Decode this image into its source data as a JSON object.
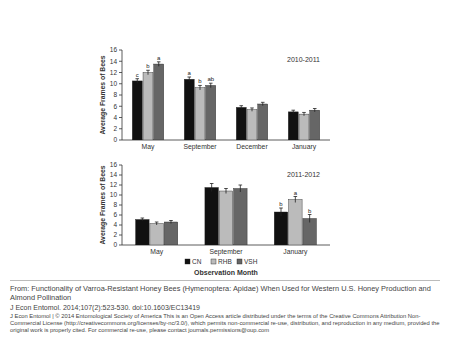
{
  "chart_data": [
    {
      "type": "bar",
      "title": "2010-2011",
      "y_label": "Average Frames of Bees",
      "categories": [
        "May",
        "September",
        "December",
        "January"
      ],
      "ylim": [
        0,
        16
      ],
      "yticks": [
        0,
        2,
        4,
        6,
        8,
        10,
        12,
        14,
        16
      ],
      "series": [
        {
          "color": "#111111",
          "values": [
            10.5,
            10.8,
            5.8,
            5.0
          ],
          "errors": [
            0.4,
            0.4,
            0.3,
            0.3
          ],
          "letters": [
            "c",
            "a",
            null,
            null
          ]
        },
        {
          "color": "#bbbbbb",
          "values": [
            12.0,
            9.3,
            5.4,
            4.6
          ],
          "errors": [
            0.4,
            0.4,
            0.3,
            0.3
          ],
          "letters": [
            "b",
            "b",
            null,
            null
          ]
        },
        {
          "color": "#666666",
          "values": [
            13.5,
            9.7,
            6.4,
            5.3
          ],
          "errors": [
            0.4,
            0.4,
            0.3,
            0.3
          ],
          "letters": [
            "a",
            "ab",
            null,
            null
          ]
        }
      ]
    },
    {
      "type": "bar",
      "title": "2011-2012",
      "y_label": "Average Frames of Bees",
      "x_label": "Observation Month",
      "categories": [
        "May",
        "September",
        "January"
      ],
      "ylim": [
        0,
        16
      ],
      "yticks": [
        0,
        2,
        4,
        6,
        8,
        10,
        12,
        14,
        16
      ],
      "legend": "bottom",
      "series": [
        {
          "name": "CN",
          "color": "#111111",
          "values": [
            5.1,
            11.5,
            6.6
          ],
          "errors": [
            0.3,
            0.8,
            0.8
          ],
          "letters": [
            null,
            null,
            "b"
          ]
        },
        {
          "name": "RHB",
          "color": "#bbbbbb",
          "values": [
            4.3,
            10.8,
            9.1
          ],
          "errors": [
            0.3,
            0.5,
            0.6
          ],
          "letters": [
            null,
            null,
            "a"
          ]
        },
        {
          "name": "VSH",
          "color": "#666666",
          "values": [
            4.6,
            11.3,
            5.3
          ],
          "errors": [
            0.3,
            0.7,
            0.8
          ],
          "letters": [
            null,
            null,
            "b"
          ]
        }
      ]
    }
  ],
  "caption": {
    "source": "From: Functionality of Varroa-Resistant Honey Bees (Hymenoptera: Apidae) When Used for Western U.S. Honey Production and Almond Pollination",
    "citation": "J Econ Entomol. 2014;107(2):523-530. doi:10.1603/EC13419",
    "license": "J Econ Entomol | © 2014 Entomological Society of America This is an Open Access article distributed under the terms of the Creative Commons Attribution Non-Commercial License (http://creativecommons.org/licenses/by-nc/3.0/), which permits non-commercial re-use, distribution, and reproduction in any medium, provided the original work is properly cited. For commercial re-use, please contact journals.permissions@oup.com"
  }
}
